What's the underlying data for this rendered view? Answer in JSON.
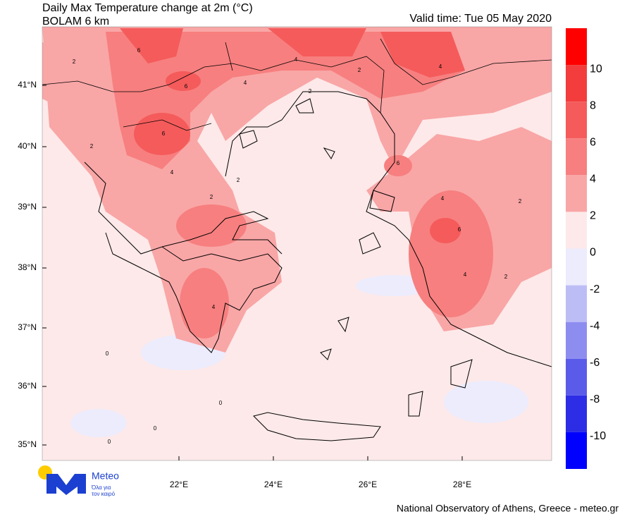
{
  "header": {
    "title": "Daily Max Temperature change at 2m (°C)",
    "subtitle": "BOLAM 6 km",
    "valid_time": "Valid time: Tue 05 May 2020"
  },
  "axes": {
    "latitudes": [
      "41°N",
      "40°N",
      "39°N",
      "38°N",
      "37°N",
      "36°N",
      "35°N"
    ],
    "longitudes": [
      "22°E",
      "24°E",
      "26°E",
      "28°E"
    ]
  },
  "colorbar": {
    "labels": [
      "10",
      "8",
      "6",
      "4",
      "2",
      "0",
      "-2",
      "-4",
      "-6",
      "-8",
      "-10"
    ],
    "colors": [
      "#fe0000",
      "#f33c3c",
      "#f55b5b",
      "#f77f7f",
      "#f9a6a6",
      "#fde9e9",
      "#ececfd",
      "#bdbdf6",
      "#8d8df0",
      "#5b5bea",
      "#2d2de6",
      "#0000fe"
    ]
  },
  "contour_labels": [
    "6",
    "2",
    "6",
    "6",
    "4",
    "2",
    "4",
    "2",
    "2",
    "2",
    "4",
    "2",
    "4",
    "6",
    "4",
    "2",
    "4",
    "6",
    "4",
    "2",
    "0",
    "0",
    "0",
    "0"
  ],
  "logo": {
    "name": "Meteo",
    "tagline_1": "Όλα για",
    "tagline_2": "τον καιρό"
  },
  "footer": "National Observatory of Athens, Greece - meteo.gr"
}
